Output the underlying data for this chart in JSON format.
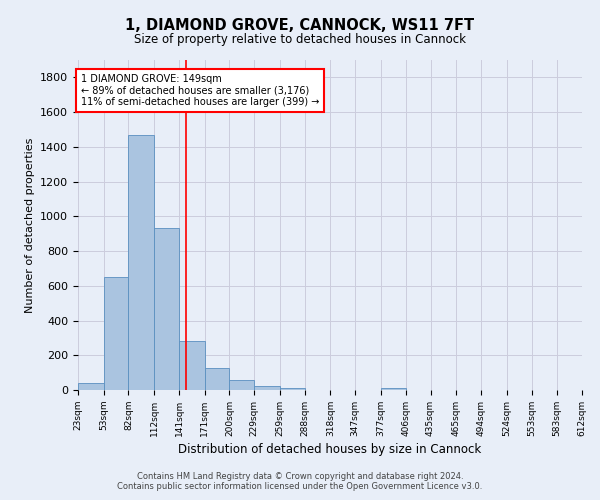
{
  "title": "1, DIAMOND GROVE, CANNOCK, WS11 7FT",
  "subtitle": "Size of property relative to detached houses in Cannock",
  "xlabel": "Distribution of detached houses by size in Cannock",
  "ylabel": "Number of detached properties",
  "footer_line1": "Contains HM Land Registry data © Crown copyright and database right 2024.",
  "footer_line2": "Contains public sector information licensed under the Open Government Licence v3.0.",
  "bin_edges": [
    23,
    53,
    82,
    112,
    141,
    171,
    200,
    229,
    259,
    288,
    318,
    347,
    377,
    406,
    435,
    465,
    494,
    524,
    553,
    583,
    612
  ],
  "bar_heights": [
    40,
    648,
    1466,
    935,
    285,
    128,
    57,
    22,
    10,
    0,
    0,
    0,
    10,
    0,
    0,
    0,
    0,
    0,
    0,
    0
  ],
  "bar_color": "#aac4e0",
  "bar_edge_color": "#5a8fc0",
  "grid_color": "#ccccdd",
  "vline_x": 149,
  "vline_color": "red",
  "annotation_text": "1 DIAMOND GROVE: 149sqm\n← 89% of detached houses are smaller (3,176)\n11% of semi-detached houses are larger (399) →",
  "annotation_box_color": "white",
  "annotation_box_edge": "red",
  "ylim": [
    0,
    1900
  ],
  "yticks": [
    0,
    200,
    400,
    600,
    800,
    1000,
    1200,
    1400,
    1600,
    1800
  ],
  "bg_color": "#e8eef8"
}
